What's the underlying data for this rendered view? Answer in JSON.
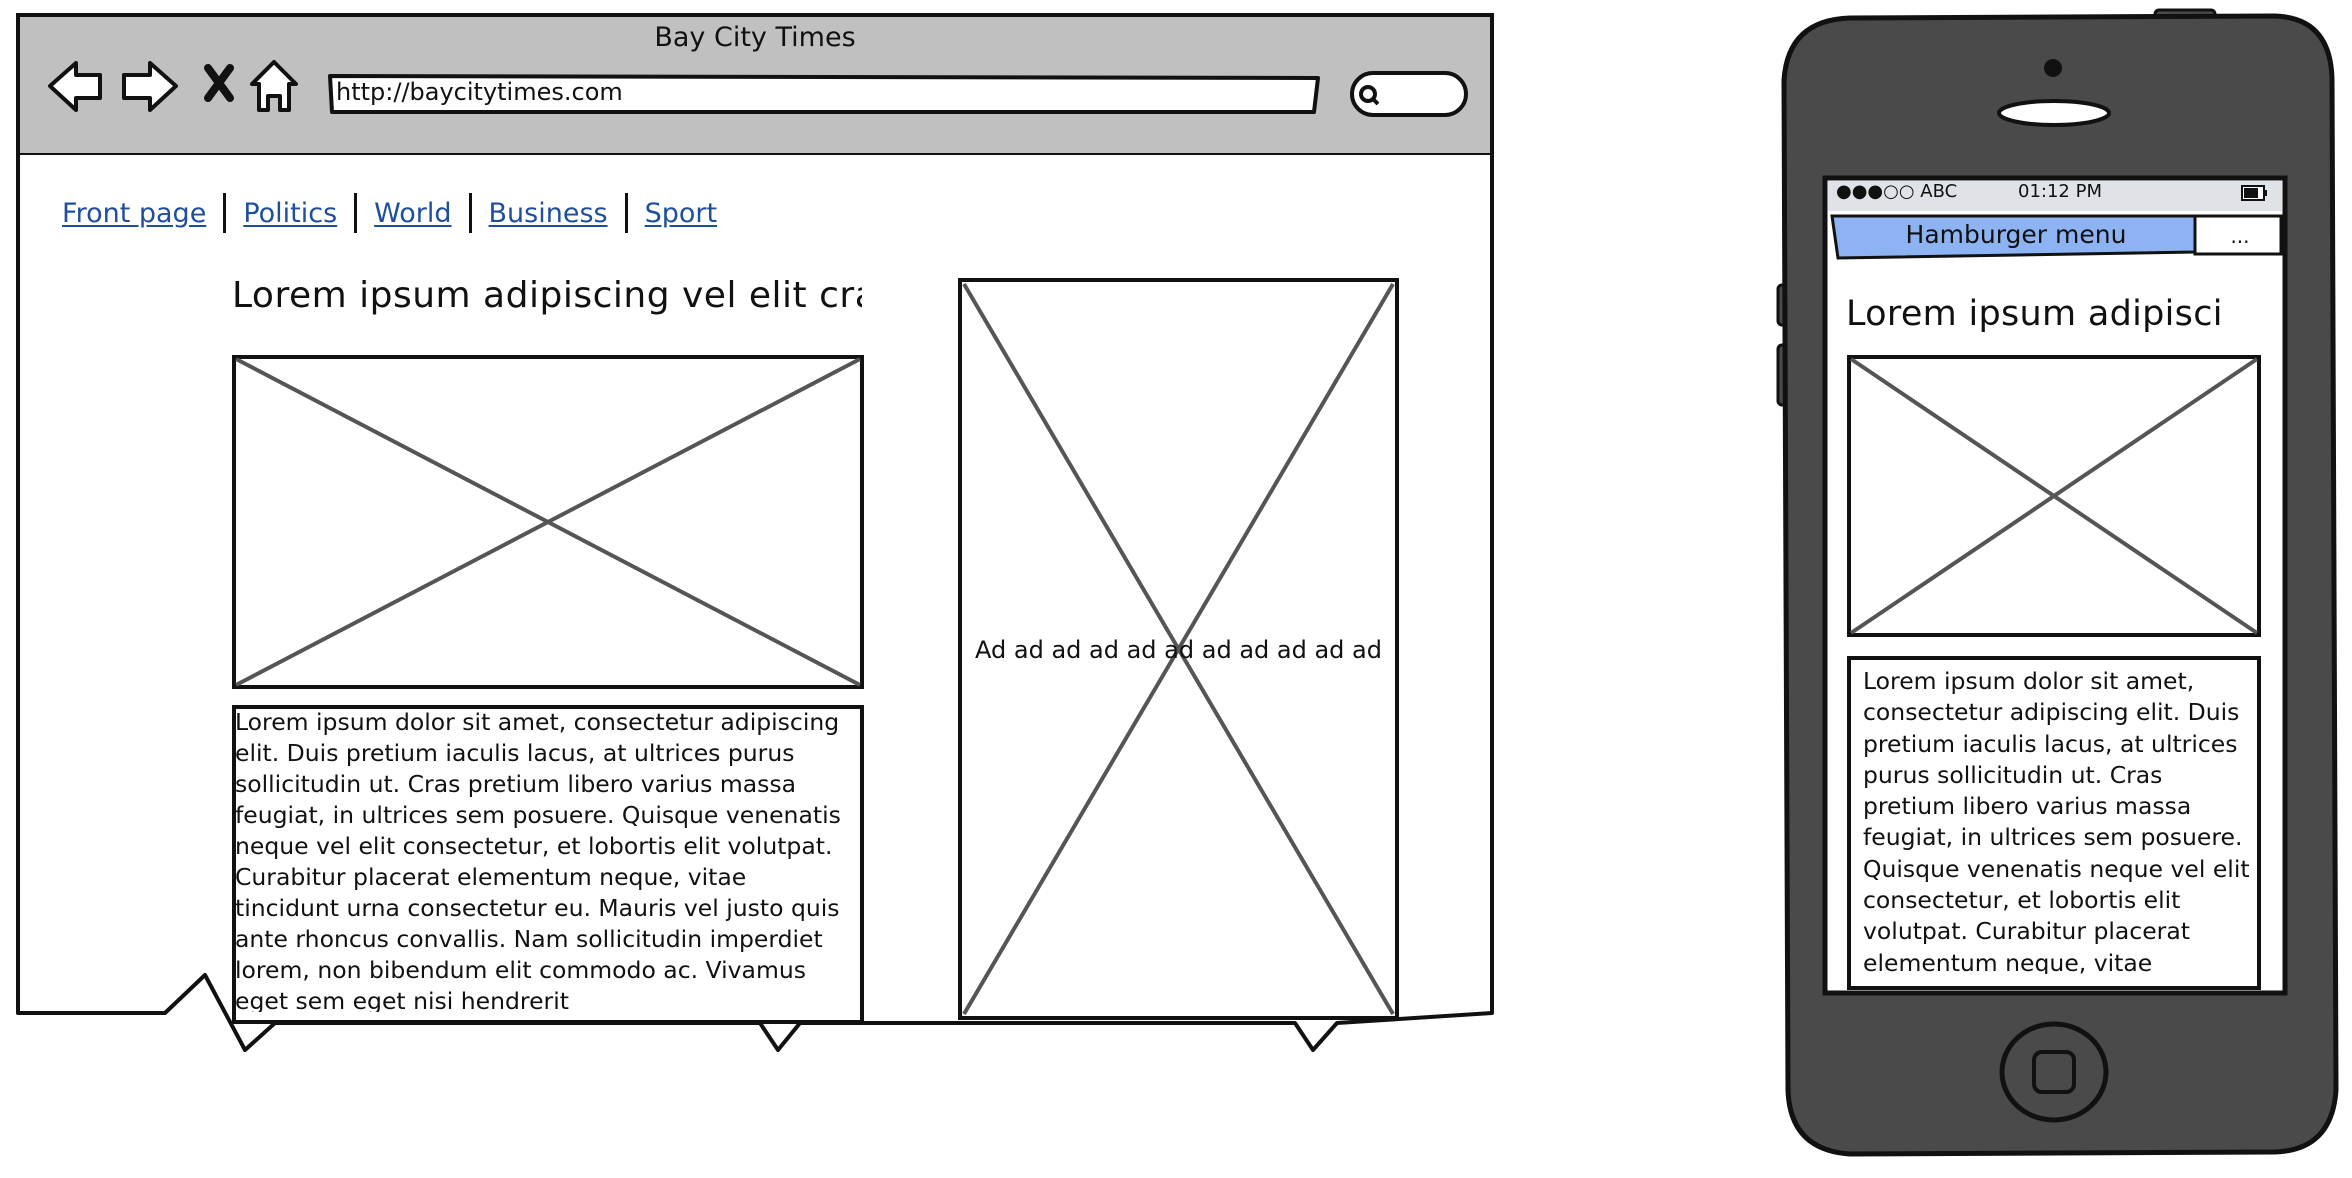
{
  "browser": {
    "title": "Bay City Times",
    "url": "http://baycitytimes.com",
    "nav_items": [
      "Front page",
      "Politics",
      "World",
      "Business",
      "Sport"
    ],
    "headline": "Lorem ipsum adipiscing vel elit cra",
    "article_text": "Lorem ipsum dolor sit amet, consectetur adipiscing elit. Duis pretium iaculis lacus, at ultrices purus sollicitudin ut. Cras pretium libero varius massa feugiat, in ultrices sem posuere. Quisque venenatis neque vel elit consectetur, et lobortis elit volutpat. Curabitur placerat elementum neque, vitae tincidunt urna consectetur eu. Mauris vel justo quis ante rhoncus convallis. Nam sollicitudin imperdiet lorem, non bibendum elit commodo ac. Vivamus eget sem eget nisi hendrerit",
    "ad_text": "Ad ad ad ad ad ad ad ad ad ad ad"
  },
  "phone": {
    "carrier": "●●●○○ ABC",
    "time": "01:12 PM",
    "menu_label": "Hamburger menu",
    "more_label": "...",
    "headline": "Lorem ipsum adipisci",
    "article_text": "Lorem ipsum dolor sit amet, consectetur adipiscing elit. Duis pretium iaculis lacus, at ultrices purus sollicitudin ut. Cras pretium libero varius massa feugiat, in ultrices sem posuere. Quisque venenatis neque vel elit consectetur, et lobortis elit volutpat. Curabitur placerat elementum neque, vitae tincidunt"
  },
  "colors": {
    "toolbar_bg": "#c0c0c0",
    "link": "#1f4f9c",
    "menu_bar": "#8db3f2",
    "phone_body": "#4a4a4a",
    "placeholder_line": "#555555"
  },
  "icons": [
    "back-arrow-icon",
    "forward-arrow-icon",
    "stop-icon",
    "home-icon",
    "search-icon",
    "signal-icon",
    "battery-icon",
    "home-button-icon",
    "camera-icon",
    "speaker-icon"
  ]
}
